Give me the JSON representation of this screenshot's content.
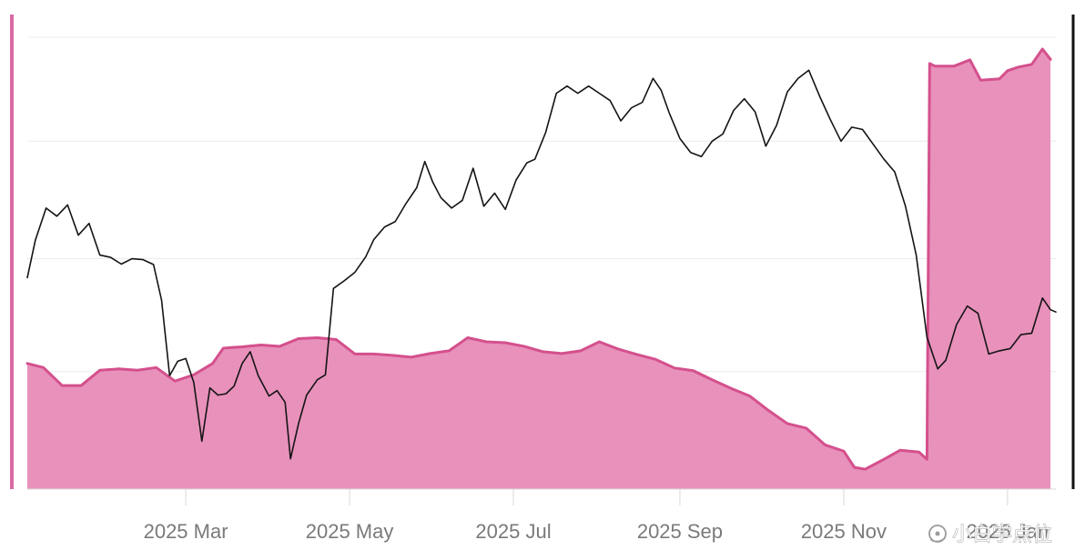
{
  "chart_data": {
    "type": "line",
    "title": "",
    "xlabel": "",
    "ylabel": "",
    "x_axis": {
      "type": "date",
      "range": [
        "2025-01-01",
        "2026-01-19"
      ],
      "tick_dates": [
        "2025-03-01",
        "2025-05-01",
        "2025-07-01",
        "2025-09-01",
        "2025-11-01",
        "2026-01-01"
      ],
      "tick_labels": [
        "2025 Mar",
        "2025 May",
        "2025 Jul",
        "2025 Sep",
        "2025 Nov",
        "2026 Jan"
      ]
    },
    "y_axis": {
      "range": [
        0,
        100
      ],
      "gridlines": [
        0,
        26,
        51,
        77,
        100
      ],
      "tick_labels_visible": false
    },
    "grid": true,
    "legend": "none",
    "series": [
      {
        "kind": "area",
        "color": "#e891bb",
        "edge_color": "#d4508d",
        "points": [
          [
            "2025-01-01",
            27.8
          ],
          [
            "2025-01-07",
            26.9
          ],
          [
            "2025-01-14",
            22.9
          ],
          [
            "2025-01-21",
            22.9
          ],
          [
            "2025-01-28",
            26.3
          ],
          [
            "2025-02-04",
            26.6
          ],
          [
            "2025-02-11",
            26.3
          ],
          [
            "2025-02-18",
            26.9
          ],
          [
            "2025-02-25",
            23.9
          ],
          [
            "2025-03-04",
            25.3
          ],
          [
            "2025-03-11",
            27.8
          ],
          [
            "2025-03-15",
            31.2
          ],
          [
            "2025-03-22",
            31.5
          ],
          [
            "2025-03-29",
            31.9
          ],
          [
            "2025-04-05",
            31.6
          ],
          [
            "2025-04-12",
            33.3
          ],
          [
            "2025-04-19",
            33.5
          ],
          [
            "2025-04-26",
            33.1
          ],
          [
            "2025-05-03",
            29.9
          ],
          [
            "2025-05-10",
            29.9
          ],
          [
            "2025-05-17",
            29.6
          ],
          [
            "2025-05-24",
            29.2
          ],
          [
            "2025-05-31",
            30.0
          ],
          [
            "2025-06-07",
            30.6
          ],
          [
            "2025-06-14",
            33.5
          ],
          [
            "2025-06-21",
            32.6
          ],
          [
            "2025-06-28",
            32.4
          ],
          [
            "2025-07-05",
            31.6
          ],
          [
            "2025-07-12",
            30.4
          ],
          [
            "2025-07-19",
            30.0
          ],
          [
            "2025-07-26",
            30.6
          ],
          [
            "2025-08-02",
            32.6
          ],
          [
            "2025-08-09",
            31.0
          ],
          [
            "2025-08-16",
            29.8
          ],
          [
            "2025-08-23",
            28.7
          ],
          [
            "2025-08-30",
            26.8
          ],
          [
            "2025-09-06",
            26.2
          ],
          [
            "2025-09-13",
            24.2
          ],
          [
            "2025-09-20",
            22.3
          ],
          [
            "2025-09-27",
            20.6
          ],
          [
            "2025-10-04",
            17.4
          ],
          [
            "2025-10-11",
            14.5
          ],
          [
            "2025-10-18",
            13.5
          ],
          [
            "2025-10-25",
            9.8
          ],
          [
            "2025-11-01",
            8.4
          ],
          [
            "2025-11-05",
            4.8
          ],
          [
            "2025-11-09",
            4.4
          ],
          [
            "2025-11-16",
            6.6
          ],
          [
            "2025-11-22",
            8.6
          ],
          [
            "2025-11-29",
            8.2
          ],
          [
            "2025-12-02",
            6.6
          ],
          [
            "2025-12-03",
            94.2
          ],
          [
            "2025-12-05",
            93.6
          ],
          [
            "2025-12-12",
            93.6
          ],
          [
            "2025-12-18",
            95.0
          ],
          [
            "2025-12-22",
            90.5
          ],
          [
            "2025-12-29",
            90.8
          ],
          [
            "2026-01-01",
            92.6
          ],
          [
            "2026-01-05",
            93.4
          ],
          [
            "2026-01-10",
            94.0
          ],
          [
            "2026-01-14",
            97.4
          ],
          [
            "2026-01-17",
            95.1
          ]
        ]
      },
      {
        "kind": "line",
        "color": "#141414",
        "points": [
          [
            "2025-01-01",
            46.8
          ],
          [
            "2025-01-04",
            55.1
          ],
          [
            "2025-01-08",
            62.2
          ],
          [
            "2025-01-12",
            60.4
          ],
          [
            "2025-01-16",
            62.9
          ],
          [
            "2025-01-20",
            56.2
          ],
          [
            "2025-01-24",
            58.8
          ],
          [
            "2025-01-28",
            51.8
          ],
          [
            "2025-02-01",
            51.3
          ],
          [
            "2025-02-05",
            49.8
          ],
          [
            "2025-02-09",
            51.0
          ],
          [
            "2025-02-13",
            50.8
          ],
          [
            "2025-02-17",
            49.7
          ],
          [
            "2025-02-20",
            41.8
          ],
          [
            "2025-02-23",
            25.1
          ],
          [
            "2025-02-26",
            28.3
          ],
          [
            "2025-03-01",
            28.9
          ],
          [
            "2025-03-04",
            23.6
          ],
          [
            "2025-03-07",
            10.6
          ],
          [
            "2025-03-10",
            22.4
          ],
          [
            "2025-03-13",
            20.8
          ],
          [
            "2025-03-16",
            21.1
          ],
          [
            "2025-03-19",
            22.8
          ],
          [
            "2025-03-22",
            27.8
          ],
          [
            "2025-03-25",
            30.4
          ],
          [
            "2025-03-28",
            25.1
          ],
          [
            "2025-04-01",
            20.6
          ],
          [
            "2025-04-04",
            21.8
          ],
          [
            "2025-04-07",
            19.2
          ],
          [
            "2025-04-09",
            6.7
          ],
          [
            "2025-04-12",
            14.5
          ],
          [
            "2025-04-15",
            20.8
          ],
          [
            "2025-04-19",
            24.2
          ],
          [
            "2025-04-22",
            25.3
          ],
          [
            "2025-04-25",
            44.4
          ],
          [
            "2025-04-29",
            46.1
          ],
          [
            "2025-05-03",
            48.0
          ],
          [
            "2025-05-07",
            51.4
          ],
          [
            "2025-05-10",
            55.2
          ],
          [
            "2025-05-14",
            58.0
          ],
          [
            "2025-05-18",
            59.2
          ],
          [
            "2025-05-22",
            63.2
          ],
          [
            "2025-05-26",
            66.7
          ],
          [
            "2025-05-29",
            72.5
          ],
          [
            "2025-06-01",
            67.9
          ],
          [
            "2025-06-04",
            64.5
          ],
          [
            "2025-06-08",
            62.2
          ],
          [
            "2025-06-12",
            63.9
          ],
          [
            "2025-06-16",
            71.0
          ],
          [
            "2025-06-20",
            62.6
          ],
          [
            "2025-06-24",
            65.5
          ],
          [
            "2025-06-28",
            61.9
          ],
          [
            "2025-07-02",
            68.4
          ],
          [
            "2025-07-06",
            72.2
          ],
          [
            "2025-07-09",
            73.0
          ],
          [
            "2025-07-13",
            78.9
          ],
          [
            "2025-07-17",
            87.6
          ],
          [
            "2025-07-21",
            89.2
          ],
          [
            "2025-07-25",
            87.6
          ],
          [
            "2025-07-29",
            89.2
          ],
          [
            "2025-08-02",
            87.6
          ],
          [
            "2025-08-06",
            86.0
          ],
          [
            "2025-08-10",
            81.5
          ],
          [
            "2025-08-14",
            84.4
          ],
          [
            "2025-08-18",
            85.6
          ],
          [
            "2025-08-22",
            90.9
          ],
          [
            "2025-08-25",
            88.3
          ],
          [
            "2025-08-28",
            83.3
          ],
          [
            "2025-09-01",
            77.6
          ],
          [
            "2025-09-05",
            74.5
          ],
          [
            "2025-09-09",
            73.6
          ],
          [
            "2025-09-13",
            77.0
          ],
          [
            "2025-09-17",
            78.6
          ],
          [
            "2025-09-21",
            83.8
          ],
          [
            "2025-09-25",
            86.4
          ],
          [
            "2025-09-29",
            83.5
          ],
          [
            "2025-10-03",
            75.9
          ],
          [
            "2025-10-07",
            80.5
          ],
          [
            "2025-10-11",
            87.9
          ],
          [
            "2025-10-15",
            90.9
          ],
          [
            "2025-10-19",
            92.7
          ],
          [
            "2025-10-23",
            87.0
          ],
          [
            "2025-10-27",
            81.8
          ],
          [
            "2025-10-31",
            77.0
          ],
          [
            "2025-11-04",
            80.1
          ],
          [
            "2025-11-08",
            79.6
          ],
          [
            "2025-11-12",
            76.3
          ],
          [
            "2025-11-16",
            73.0
          ],
          [
            "2025-11-20",
            70.2
          ],
          [
            "2025-11-24",
            62.6
          ],
          [
            "2025-11-28",
            51.8
          ],
          [
            "2025-12-02",
            33.6
          ],
          [
            "2025-12-06",
            26.6
          ],
          [
            "2025-12-09",
            28.5
          ],
          [
            "2025-12-13",
            36.4
          ],
          [
            "2025-12-17",
            40.5
          ],
          [
            "2025-12-21",
            38.9
          ],
          [
            "2025-12-25",
            29.9
          ],
          [
            "2025-12-29",
            30.6
          ],
          [
            "2026-01-02",
            31.1
          ],
          [
            "2026-01-06",
            34.2
          ],
          [
            "2026-01-10",
            34.5
          ],
          [
            "2026-01-14",
            42.3
          ],
          [
            "2026-01-17",
            39.7
          ],
          [
            "2026-01-19",
            39.2
          ]
        ]
      }
    ],
    "right_axis_line": true
  },
  "watermark": {
    "text": "小白学点位",
    "icon": "watermark-logo-icon"
  },
  "colors": {
    "area_fill": "#e891bb",
    "area_edge": "#d4508d",
    "line": "#141414",
    "grid": "#ececec",
    "baseline": "#d9d9d9",
    "left_accent": "#d86aa3",
    "right_axis": "#111111",
    "tick_label": "#7a7a7a"
  }
}
